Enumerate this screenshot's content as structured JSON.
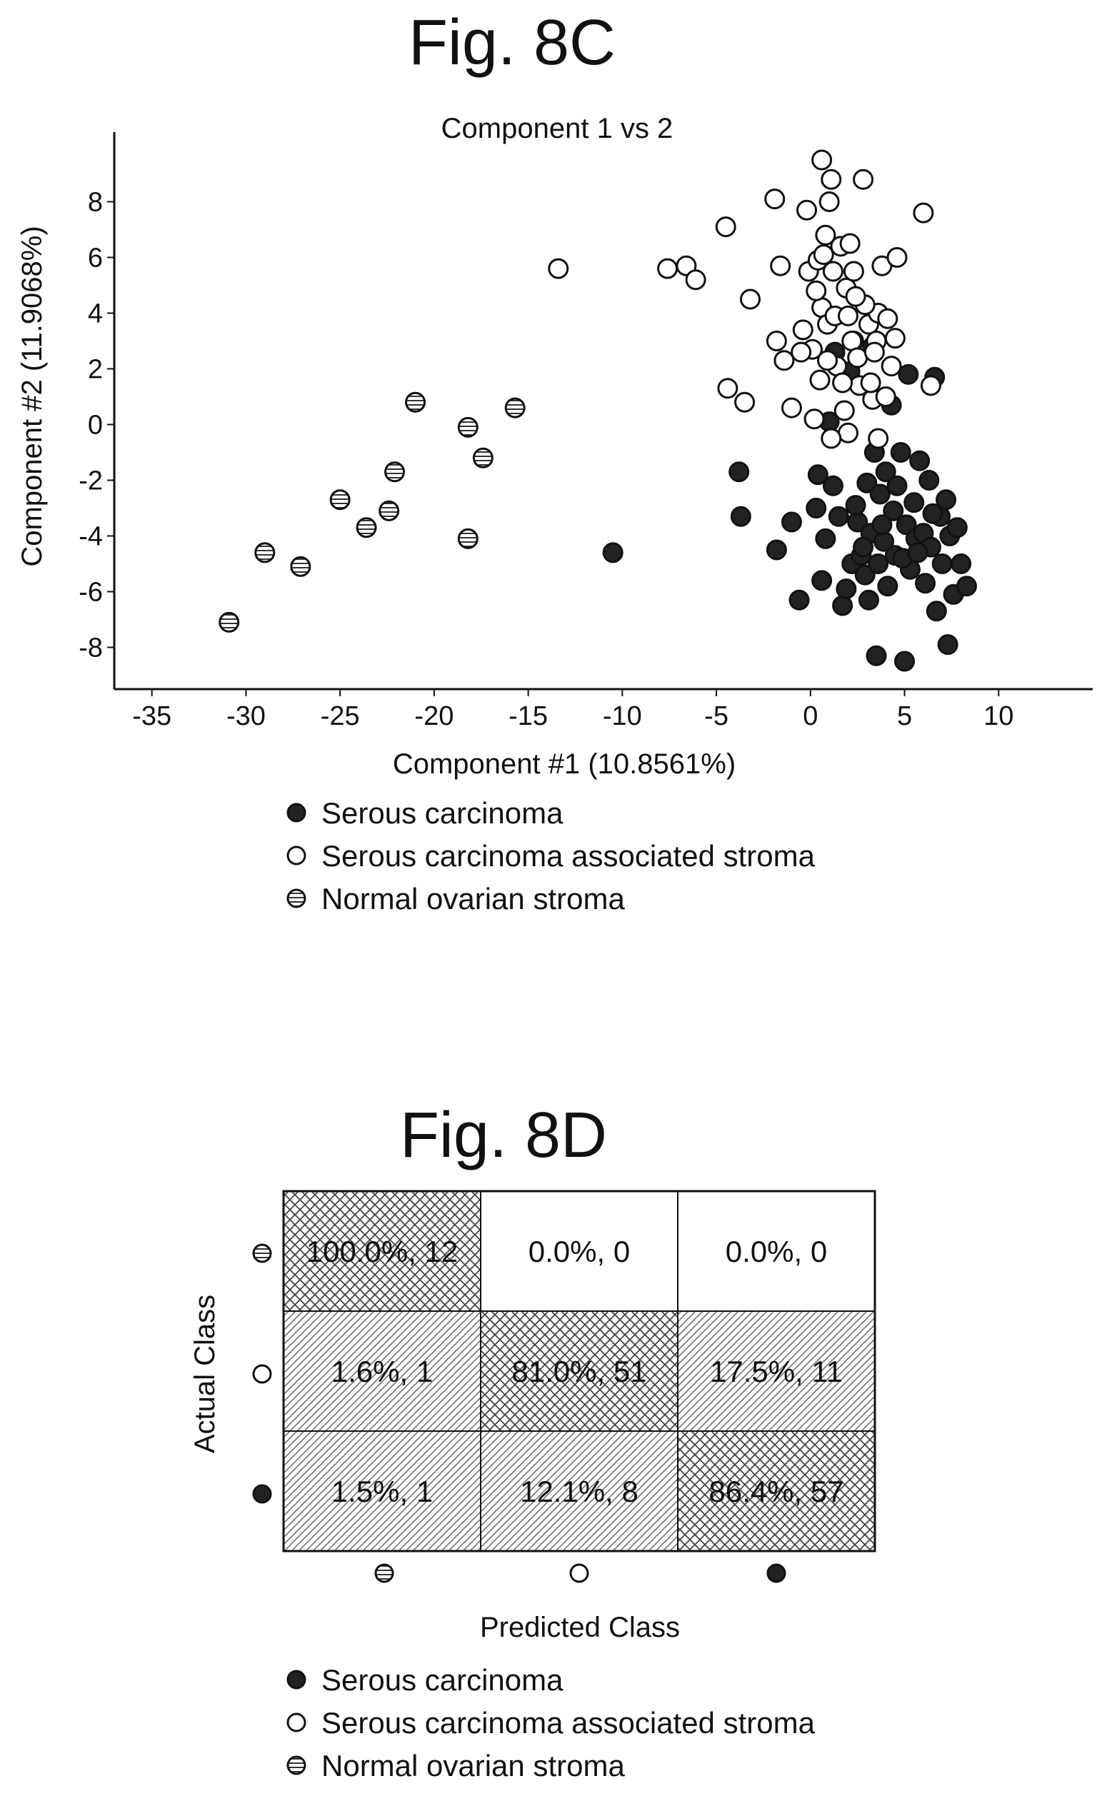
{
  "chart_data": [
    {
      "type": "scatter",
      "figure_label": "Fig. 8C",
      "title": "Component 1 vs 2",
      "xlabel": "Component #1 (10.8561%)",
      "ylabel": "Component #2 (11.9068%)",
      "xlim": [
        -37,
        15
      ],
      "ylim": [
        -9.5,
        10.5
      ],
      "xticks": [
        "-35",
        "-30",
        "-25",
        "-20",
        "-15",
        "-10",
        "-5",
        "0",
        "5",
        "10"
      ],
      "yticks": [
        "8",
        "6",
        "4",
        "2",
        "0",
        "-2",
        "-4",
        "-6",
        "-8"
      ],
      "grid": false,
      "legend_position": "bottom",
      "series": [
        {
          "name": "Serous carcinoma",
          "marker": "filled",
          "points": [
            [
              -10.5,
              -4.6
            ],
            [
              -3.8,
              -1.7
            ],
            [
              -3.7,
              -3.3
            ],
            [
              -1.8,
              -4.5
            ],
            [
              -1,
              -3.5
            ],
            [
              -0.6,
              -6.3
            ],
            [
              0.4,
              -1.8
            ],
            [
              0.3,
              -3.0
            ],
            [
              0.8,
              -4.1
            ],
            [
              0.6,
              -5.6
            ],
            [
              1.0,
              0.1
            ],
            [
              1.3,
              2.6
            ],
            [
              1.5,
              -3.3
            ],
            [
              1.7,
              -6.5
            ],
            [
              1.9,
              -5.9
            ],
            [
              2.1,
              1.9
            ],
            [
              2.2,
              -5.0
            ],
            [
              2.5,
              -3.5
            ],
            [
              2.7,
              -4.7
            ],
            [
              2.3,
              3.0
            ],
            [
              2.9,
              -5.4
            ],
            [
              3.0,
              -2.1
            ],
            [
              3.1,
              -6.3
            ],
            [
              3.2,
              -3.9
            ],
            [
              3.3,
              2.8
            ],
            [
              3.4,
              -1.0
            ],
            [
              3.6,
              -5.0
            ],
            [
              3.5,
              -8.3
            ],
            [
              3.7,
              -2.5
            ],
            [
              3.9,
              -4.2
            ],
            [
              4.0,
              -1.7
            ],
            [
              4.1,
              -5.8
            ],
            [
              4.3,
              0.7
            ],
            [
              4.4,
              -3.1
            ],
            [
              4.5,
              -4.7
            ],
            [
              4.6,
              -2.2
            ],
            [
              4.8,
              -1.0
            ],
            [
              5.0,
              -8.5
            ],
            [
              5.1,
              -3.6
            ],
            [
              5.2,
              1.8
            ],
            [
              5.3,
              -5.2
            ],
            [
              5.5,
              -2.8
            ],
            [
              5.6,
              -4.1
            ],
            [
              5.8,
              -1.3
            ],
            [
              6.0,
              -3.9
            ],
            [
              6.1,
              -5.7
            ],
            [
              6.3,
              -2.0
            ],
            [
              6.4,
              -4.4
            ],
            [
              6.6,
              1.7
            ],
            [
              6.7,
              -6.7
            ],
            [
              6.9,
              -3.3
            ],
            [
              7.0,
              -5.0
            ],
            [
              7.2,
              -2.7
            ],
            [
              7.3,
              -7.9
            ],
            [
              7.4,
              -4.0
            ],
            [
              7.6,
              -6.1
            ],
            [
              7.8,
              -3.7
            ],
            [
              8.0,
              -5.0
            ],
            [
              8.3,
              -5.8
            ],
            [
              2.8,
              -4.4
            ],
            [
              3.8,
              -3.6
            ],
            [
              4.9,
              -4.8
            ],
            [
              1.2,
              -2.2
            ],
            [
              5.7,
              -4.6
            ],
            [
              6.5,
              -3.2
            ],
            [
              2.4,
              -2.9
            ]
          ]
        },
        {
          "name": "Serous carcinoma associated stroma",
          "marker": "open",
          "points": [
            [
              -13.4,
              5.6
            ],
            [
              -7.6,
              5.6
            ],
            [
              -6.6,
              5.7
            ],
            [
              -6.1,
              5.2
            ],
            [
              -4.5,
              7.1
            ],
            [
              -4.4,
              1.3
            ],
            [
              -3.5,
              0.8
            ],
            [
              -3.2,
              4.5
            ],
            [
              -1.9,
              8.1
            ],
            [
              -1.8,
              3.0
            ],
            [
              -1.6,
              5.7
            ],
            [
              -1.4,
              2.3
            ],
            [
              -1.0,
              0.6
            ],
            [
              -0.4,
              3.4
            ],
            [
              -0.2,
              7.7
            ],
            [
              -0.1,
              5.5
            ],
            [
              0.1,
              2.7
            ],
            [
              0.2,
              0.2
            ],
            [
              0.4,
              5.9
            ],
            [
              0.5,
              1.6
            ],
            [
              0.6,
              4.2
            ],
            [
              0.6,
              9.5
            ],
            [
              0.8,
              6.8
            ],
            [
              0.9,
              3.6
            ],
            [
              1.0,
              8.0
            ],
            [
              1.1,
              8.8
            ],
            [
              1.2,
              5.5
            ],
            [
              1.4,
              2.1
            ],
            [
              1.6,
              6.4
            ],
            [
              1.8,
              0.5
            ],
            [
              1.9,
              4.9
            ],
            [
              2.0,
              -0.3
            ],
            [
              2.1,
              6.5
            ],
            [
              2.2,
              3.0
            ],
            [
              2.3,
              5.5
            ],
            [
              2.6,
              1.4
            ],
            [
              2.8,
              8.8
            ],
            [
              3.1,
              3.6
            ],
            [
              3.3,
              0.9
            ],
            [
              3.5,
              3.0
            ],
            [
              3.6,
              4.0
            ],
            [
              3.6,
              -0.5
            ],
            [
              3.8,
              5.7
            ],
            [
              4.1,
              3.8
            ],
            [
              4.3,
              2.1
            ],
            [
              4.5,
              3.1
            ],
            [
              4.6,
              6.0
            ],
            [
              6.0,
              7.6
            ],
            [
              6.4,
              1.4
            ],
            [
              0.7,
              6.1
            ],
            [
              1.3,
              3.9
            ],
            [
              2.5,
              2.4
            ],
            [
              2.9,
              4.3
            ],
            [
              3.2,
              1.5
            ],
            [
              1.7,
              1.5
            ],
            [
              0.3,
              4.8
            ],
            [
              -0.5,
              2.6
            ],
            [
              2.0,
              3.9
            ],
            [
              4.0,
              1.0
            ],
            [
              1.1,
              -0.5
            ],
            [
              2.4,
              4.6
            ],
            [
              0.9,
              2.3
            ],
            [
              3.4,
              2.6
            ]
          ]
        },
        {
          "name": "Normal ovarian stroma",
          "marker": "striped",
          "points": [
            [
              -30.9,
              -7.1
            ],
            [
              -29.0,
              -4.6
            ],
            [
              -27.1,
              -5.1
            ],
            [
              -25.0,
              -2.7
            ],
            [
              -23.6,
              -3.7
            ],
            [
              -22.4,
              -3.1
            ],
            [
              -22.1,
              -1.7
            ],
            [
              -21.0,
              0.8
            ],
            [
              -18.2,
              -0.1
            ],
            [
              -18.2,
              -4.1
            ],
            [
              -17.4,
              -1.2
            ],
            [
              -15.7,
              0.6
            ]
          ]
        }
      ]
    },
    {
      "type": "heatmap",
      "figure_label": "Fig. 8D",
      "xlabel": "Predicted Class",
      "ylabel": "Actual Class",
      "class_markers": [
        "striped",
        "open",
        "filled"
      ],
      "cells": [
        [
          {
            "pct": 100.0,
            "n": 12,
            "label": "100.0%, 12"
          },
          {
            "pct": 0.0,
            "n": 0,
            "label": "0.0%, 0"
          },
          {
            "pct": 0.0,
            "n": 0,
            "label": "0.0%, 0"
          }
        ],
        [
          {
            "pct": 1.6,
            "n": 1,
            "label": "1.6%, 1"
          },
          {
            "pct": 81.0,
            "n": 51,
            "label": "81.0%, 51"
          },
          {
            "pct": 17.5,
            "n": 11,
            "label": "17.5%, 11"
          }
        ],
        [
          {
            "pct": 1.5,
            "n": 1,
            "label": "1.5%, 1"
          },
          {
            "pct": 12.1,
            "n": 8,
            "label": "12.1%, 8"
          },
          {
            "pct": 86.4,
            "n": 57,
            "label": "86.4%, 57"
          }
        ]
      ]
    }
  ],
  "legend": {
    "items": [
      {
        "marker": "filled",
        "label": "Serous carcinoma"
      },
      {
        "marker": "open",
        "label": "Serous carcinoma associated stroma"
      },
      {
        "marker": "striped",
        "label": "Normal ovarian stroma"
      }
    ]
  }
}
